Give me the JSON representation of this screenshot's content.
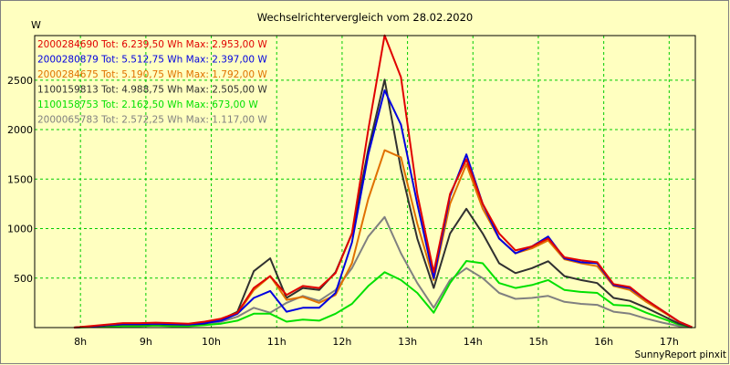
{
  "chart_data": {
    "type": "line",
    "title": "Wechselrichtervergleich vom 28.02.2020",
    "ylabel": "W",
    "xlabel": "",
    "credit": "SunnyReport pinxit",
    "ylim": [
      0,
      2950
    ],
    "xlim": [
      7.3,
      17.4
    ],
    "grid": true,
    "x_ticks": [
      {
        "value": 8,
        "label": "8h"
      },
      {
        "value": 9,
        "label": "9h"
      },
      {
        "value": 10,
        "label": "10h"
      },
      {
        "value": 11,
        "label": "11h"
      },
      {
        "value": 12,
        "label": "12h"
      },
      {
        "value": 13,
        "label": "13h"
      },
      {
        "value": 14,
        "label": "14h"
      },
      {
        "value": 15,
        "label": "15h"
      },
      {
        "value": 16,
        "label": "16h"
      },
      {
        "value": 17,
        "label": "17h"
      }
    ],
    "y_ticks": [
      {
        "value": 500,
        "label": "500"
      },
      {
        "value": 1000,
        "label": "1000"
      },
      {
        "value": 1500,
        "label": "1500"
      },
      {
        "value": 2000,
        "label": "2000"
      },
      {
        "value": 2500,
        "label": "2500"
      }
    ],
    "x": [
      7.9,
      8.15,
      8.4,
      8.65,
      8.9,
      9.15,
      9.4,
      9.65,
      9.9,
      10.15,
      10.4,
      10.65,
      10.9,
      11.15,
      11.4,
      11.65,
      11.9,
      12.15,
      12.4,
      12.65,
      12.9,
      13.15,
      13.4,
      13.65,
      13.9,
      14.15,
      14.4,
      14.65,
      14.9,
      15.15,
      15.4,
      15.65,
      15.9,
      16.15,
      16.4,
      16.65,
      16.9,
      17.15,
      17.35
    ],
    "series": [
      {
        "id": "2000284690",
        "summary": "Tot: 6.239,50 Wh Max: 2.953,00 W",
        "color": "#E00000",
        "values": [
          0,
          15,
          30,
          45,
          45,
          50,
          45,
          40,
          60,
          90,
          150,
          400,
          520,
          330,
          420,
          400,
          550,
          950,
          2000,
          2953,
          2530,
          1350,
          560,
          1350,
          1700,
          1250,
          950,
          780,
          820,
          900,
          710,
          680,
          660,
          440,
          410,
          280,
          170,
          60,
          5
        ]
      },
      {
        "id": "2000280879",
        "summary": "Tot: 5.512,75 Wh Max: 2.397,00 W",
        "color": "#0000E0",
        "values": [
          0,
          10,
          25,
          35,
          35,
          40,
          35,
          30,
          45,
          70,
          140,
          300,
          370,
          160,
          200,
          200,
          350,
          860,
          1750,
          2397,
          2050,
          1250,
          500,
          1330,
          1750,
          1250,
          900,
          750,
          820,
          920,
          700,
          660,
          650,
          430,
          400,
          280,
          170,
          60,
          5
        ]
      },
      {
        "id": "2000284675",
        "summary": "Tot: 5.190,75 Wh Max: 1.792,00 W",
        "color": "#E07000",
        "values": [
          0,
          12,
          25,
          35,
          35,
          40,
          35,
          30,
          50,
          80,
          140,
          380,
          520,
          280,
          310,
          250,
          330,
          650,
          1300,
          1792,
          1720,
          1050,
          480,
          1250,
          1650,
          1200,
          900,
          750,
          800,
          880,
          690,
          650,
          620,
          420,
          380,
          260,
          160,
          60,
          5
        ]
      },
      {
        "id": "1100159813",
        "summary": "Tot: 4.988,75 Wh Max: 2.505,00 W",
        "color": "#303030",
        "values": [
          0,
          10,
          20,
          30,
          30,
          35,
          30,
          30,
          40,
          80,
          160,
          570,
          700,
          300,
          400,
          380,
          560,
          950,
          1800,
          2505,
          1600,
          900,
          400,
          950,
          1200,
          950,
          650,
          550,
          600,
          670,
          520,
          480,
          450,
          300,
          270,
          200,
          120,
          40,
          3
        ]
      },
      {
        "id": "1100158753",
        "summary": "Tot: 2.162,50 Wh Max: 673,00 W",
        "color": "#00E000",
        "values": [
          0,
          5,
          10,
          15,
          15,
          20,
          15,
          15,
          25,
          40,
          70,
          140,
          140,
          60,
          80,
          70,
          140,
          240,
          420,
          560,
          480,
          350,
          150,
          450,
          673,
          650,
          450,
          400,
          430,
          480,
          380,
          360,
          350,
          230,
          220,
          150,
          90,
          30,
          2
        ]
      },
      {
        "id": "2000065783",
        "summary": "Tot: 2.572,25 Wh Max: 1.117,00 W",
        "color": "#808080",
        "values": [
          0,
          8,
          15,
          20,
          20,
          25,
          20,
          20,
          30,
          60,
          110,
          200,
          150,
          250,
          320,
          270,
          380,
          600,
          920,
          1117,
          750,
          450,
          200,
          480,
          600,
          500,
          350,
          290,
          300,
          320,
          260,
          240,
          230,
          160,
          140,
          90,
          50,
          15,
          1
        ]
      }
    ]
  }
}
